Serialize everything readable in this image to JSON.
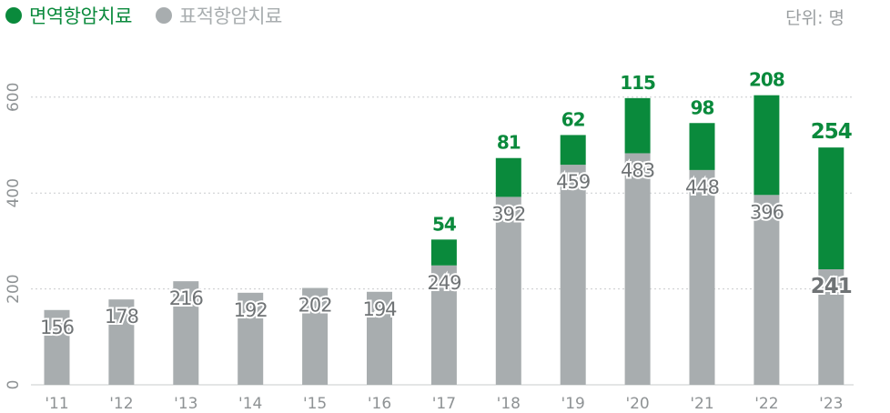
{
  "legend": {
    "immuno_label": "면역항암치료",
    "targeted_label": "표적항암치료"
  },
  "unit_label": "단위: 명",
  "colors": {
    "immuno": "#0a8a3c",
    "targeted": "#a8adaf",
    "targeted_text": "#6f7375",
    "grid": "#c9cccd",
    "axis_text": "#8e9294"
  },
  "chart_data": {
    "type": "bar",
    "stacked": true,
    "categories": [
      "'11",
      "'12",
      "'13",
      "'14",
      "'15",
      "'16",
      "'17",
      "'18",
      "'19",
      "'20",
      "'21",
      "'22",
      "'23"
    ],
    "series": [
      {
        "name": "표적항암치료",
        "values": [
          156,
          178,
          216,
          192,
          202,
          194,
          249,
          392,
          459,
          483,
          448,
          396,
          241
        ]
      },
      {
        "name": "면역항암치료",
        "values": [
          null,
          null,
          null,
          null,
          null,
          null,
          54,
          81,
          62,
          115,
          98,
          208,
          254
        ]
      }
    ],
    "y_ticks": [
      0,
      200,
      400,
      600
    ],
    "ylim": [
      0,
      670
    ],
    "grid": true,
    "legend_position": "top-left"
  }
}
